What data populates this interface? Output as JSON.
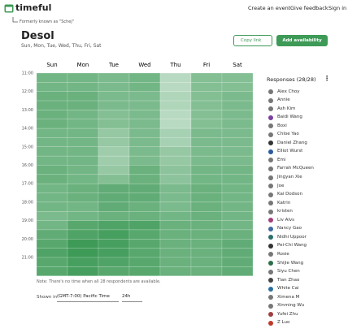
{
  "header": {
    "logo": "timeful",
    "nav": [
      "Create an event",
      "Give feedback",
      "Sign in"
    ],
    "former_name": "Formerly known as \"Schej\""
  },
  "event": {
    "title": "Desol",
    "days_summary": "Sun, Mon, Tue, Wed, Thu, Fri, Sat",
    "copy_button": "Copy link",
    "add_button": "Add availability"
  },
  "grid": {
    "days": [
      "Sun",
      "Mon",
      "Tue",
      "Wed",
      "Thu",
      "Fri",
      "Sat"
    ],
    "time_labels": [
      "11:00",
      "12:00",
      "13:00",
      "14:00",
      "15:00",
      "16:00",
      "17:00",
      "18:00",
      "19:00",
      "20:00",
      "21:00"
    ],
    "availability": [
      [
        16,
        16,
        15,
        16,
        8,
        14,
        14
      ],
      [
        16,
        16,
        15,
        16,
        8,
        14,
        14
      ],
      [
        17,
        17,
        15,
        15,
        9,
        14,
        15
      ],
      [
        17,
        17,
        15,
        15,
        9,
        14,
        15
      ],
      [
        17,
        16,
        14,
        15,
        8,
        14,
        15
      ],
      [
        17,
        16,
        14,
        15,
        8,
        14,
        15
      ],
      [
        16,
        16,
        12,
        15,
        10,
        15,
        15
      ],
      [
        16,
        16,
        12,
        15,
        10,
        15,
        15
      ],
      [
        16,
        16,
        11,
        15,
        12,
        15,
        15
      ],
      [
        16,
        16,
        11,
        15,
        12,
        15,
        15
      ],
      [
        17,
        16,
        12,
        17,
        13,
        16,
        16
      ],
      [
        17,
        16,
        14,
        17,
        13,
        16,
        16
      ],
      [
        16,
        17,
        18,
        18,
        15,
        17,
        16
      ],
      [
        16,
        17,
        18,
        18,
        15,
        17,
        16
      ],
      [
        16,
        16,
        18,
        17,
        15,
        17,
        16
      ],
      [
        15,
        16,
        17,
        17,
        16,
        17,
        16
      ],
      [
        16,
        19,
        20,
        20,
        17,
        17,
        16
      ],
      [
        18,
        20,
        21,
        19,
        17,
        17,
        17
      ],
      [
        19,
        22,
        21,
        19,
        17,
        17,
        18
      ],
      [
        20,
        22,
        21,
        19,
        17,
        17,
        18
      ],
      [
        19,
        21,
        20,
        19,
        17,
        17,
        18
      ],
      [
        19,
        21,
        19,
        19,
        17,
        17,
        18
      ]
    ],
    "note": "Note: There's no time when all 28 respondents are available.",
    "shown_in": "Shown in",
    "timezone": "(GMT-7:00) Pacific Time",
    "clock": "24h"
  },
  "responses": {
    "title": "Responses",
    "count": "(28/28)",
    "names": [
      "Alex Choy",
      "Annie",
      "Ash Kim",
      "Baidi Wang",
      "Boxi",
      "Chloe Yao",
      "Daniel Zhang",
      "Elliot Wurst",
      "Emi",
      "Farrah McQueen",
      "Jingyan Xie",
      "Joe",
      "Kai Dodson",
      "Katrin",
      "kristen",
      "Liv Alvs",
      "Nancy Gao",
      "Nidhi Uppoor",
      "Pei-Chi Wang",
      "Rosie",
      "Shijie Wang",
      "Siyu Chen",
      "Tian Zhao",
      "White Cai",
      "Ximena M",
      "Xinming Wu",
      "Yufei Zhu",
      "Z Luo"
    ]
  }
}
